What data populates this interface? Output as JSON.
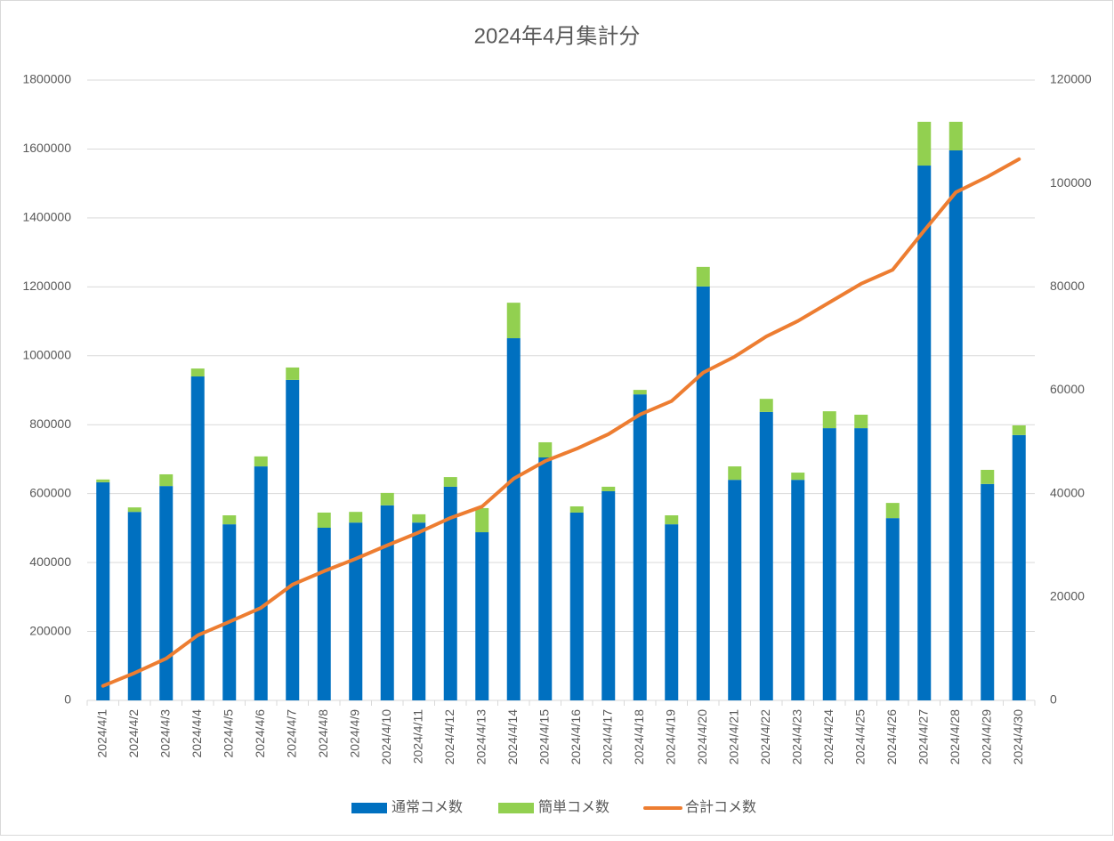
{
  "chart_data": {
    "type": "bar",
    "stacked": true,
    "title": "2024年4月集計分",
    "categories": [
      "2024/4/1",
      "2024/4/2",
      "2024/4/3",
      "2024/4/4",
      "2024/4/5",
      "2024/4/6",
      "2024/4/7",
      "2024/4/8",
      "2024/4/9",
      "2024/4/10",
      "2024/4/11",
      "2024/4/12",
      "2024/4/13",
      "2024/4/14",
      "2024/4/15",
      "2024/4/16",
      "2024/4/17",
      "2024/4/18",
      "2024/4/19",
      "2024/4/20",
      "2024/4/21",
      "2024/4/22",
      "2024/4/23",
      "2024/4/24",
      "2024/4/25",
      "2024/4/26",
      "2024/4/27",
      "2024/4/28",
      "2024/4/29",
      "2024/4/30"
    ],
    "series": [
      {
        "name": "通常コメ数",
        "type": "bar",
        "color": "#0070c0",
        "values": [
          633000,
          547000,
          622000,
          940000,
          511000,
          679000,
          930000,
          501000,
          516000,
          566000,
          516000,
          620000,
          488000,
          1051000,
          705000,
          545000,
          607000,
          888000,
          511000,
          1201000,
          640000,
          837000,
          640000,
          790000,
          790000,
          529000,
          1552000,
          1596000,
          628000,
          770000
        ]
      },
      {
        "name": "簡単コメ数",
        "type": "bar",
        "color": "#92d050",
        "values": [
          8000,
          13000,
          34000,
          23000,
          26000,
          29000,
          36000,
          44000,
          31000,
          36000,
          24000,
          28000,
          70000,
          103000,
          44000,
          18000,
          13000,
          13000,
          26000,
          57000,
          39000,
          38000,
          21000,
          49000,
          39000,
          44000,
          127000,
          83000,
          41000,
          28000
        ]
      },
      {
        "name": "合計コメ数",
        "type": "line",
        "axis": "y2",
        "color": "#ed7d31",
        "values": [
          2800,
          5300,
          8100,
          12600,
          15200,
          17900,
          22400,
          25000,
          27400,
          30000,
          32500,
          35300,
          37500,
          42900,
          46300,
          48700,
          51500,
          55300,
          57900,
          63400,
          66500,
          70400,
          73400,
          77000,
          80600,
          83300,
          90900,
          98300,
          101300,
          104700
        ]
      }
    ],
    "ylim": [
      0,
      1800000
    ],
    "yticks": [
      0,
      200000,
      400000,
      600000,
      800000,
      1000000,
      1200000,
      1400000,
      1600000,
      1800000
    ],
    "y2lim": [
      0,
      120000
    ],
    "y2ticks": [
      0,
      20000,
      40000,
      60000,
      80000,
      100000,
      120000
    ],
    "grid": true,
    "legend": "bottom"
  }
}
